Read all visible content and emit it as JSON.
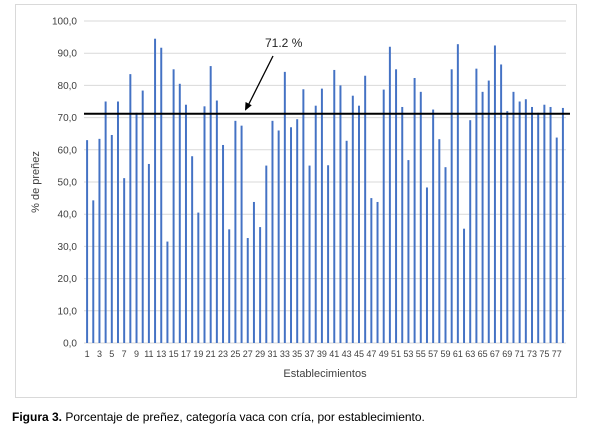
{
  "caption": {
    "label": "Figura 3.",
    "text": " Porcentaje de preñez, categoría vaca con cría, por establecimiento."
  },
  "colors": {
    "bar": "#4472c4",
    "reference_line": "#000000",
    "grid": "#d9d9d9"
  },
  "chart_data": {
    "type": "bar",
    "title": "",
    "xlabel": "Establecimientos",
    "ylabel": "% de preñez",
    "ylim": [
      0,
      100
    ],
    "yticks": [
      "0,0",
      "10,0",
      "20,0",
      "30,0",
      "40,0",
      "50,0",
      "60,0",
      "70,0",
      "80,0",
      "90,0",
      "100,0"
    ],
    "grid": true,
    "categories": [
      1,
      2,
      3,
      4,
      5,
      6,
      7,
      8,
      9,
      10,
      11,
      12,
      13,
      14,
      15,
      16,
      17,
      18,
      19,
      20,
      21,
      22,
      23,
      24,
      25,
      26,
      27,
      28,
      29,
      30,
      31,
      32,
      33,
      34,
      35,
      36,
      37,
      38,
      39,
      40,
      41,
      42,
      43,
      44,
      45,
      46,
      47,
      48,
      49,
      50,
      51,
      52,
      53,
      54,
      55,
      56,
      57,
      58,
      59,
      60,
      61,
      62,
      63,
      64,
      65,
      66,
      67,
      68,
      69,
      70,
      71,
      72,
      73,
      74,
      75,
      76,
      77,
      78
    ],
    "xtick_labels": [
      "1",
      "3",
      "5",
      "7",
      "9",
      "11",
      "13",
      "15",
      "17",
      "19",
      "21",
      "23",
      "25",
      "27",
      "29",
      "31",
      "33",
      "35",
      "37",
      "39",
      "41",
      "43",
      "45",
      "47",
      "49",
      "51",
      "53",
      "55",
      "57",
      "59",
      "61",
      "63",
      "65",
      "67",
      "69",
      "71",
      "73",
      "75",
      "77"
    ],
    "values": [
      63.0,
      44.3,
      63.4,
      75.0,
      64.6,
      75.0,
      51.2,
      83.5,
      71.5,
      78.4,
      55.6,
      94.5,
      91.7,
      31.5,
      85.0,
      80.5,
      74.0,
      58.0,
      40.5,
      73.5,
      86.0,
      75.3,
      61.5,
      35.3,
      69.0,
      67.5,
      32.6,
      43.8,
      36.0,
      55.1,
      69.0,
      66.0,
      84.2,
      67.0,
      69.5,
      78.8,
      55.1,
      73.7,
      79.0,
      55.2,
      84.8,
      80.0,
      62.8,
      76.8,
      73.7,
      83.0,
      45.0,
      43.8,
      78.7,
      92.0,
      85.0,
      73.3,
      56.8,
      82.3,
      78.0,
      48.3,
      72.5,
      63.3,
      54.6,
      85.0,
      92.8,
      35.5,
      69.2,
      85.2,
      78.0,
      81.5,
      92.4,
      86.5,
      72.0,
      78.0,
      75.0,
      75.7,
      73.3,
      71.5,
      74.0,
      73.3,
      63.8,
      73.0
    ],
    "reference_line": {
      "value": 71.2,
      "label": "71.2 %"
    }
  }
}
